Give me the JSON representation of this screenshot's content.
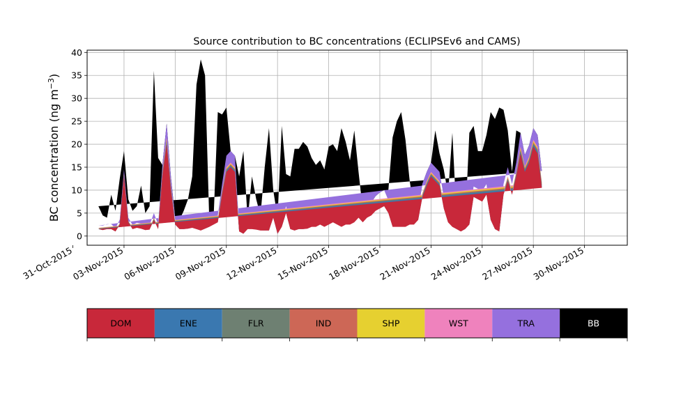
{
  "chart_data": {
    "type": "area",
    "title": "Source contribution to BC concentrations (ECLIPSEv6 and CAMS)",
    "ylabel": "BC concentration (ng m",
    "ylabel_sup": "−3",
    "ylabel_close": ")",
    "xlabel": "",
    "ylim": [
      -2,
      40.5
    ],
    "xlim": [
      "2015-11-01",
      "2015-12-03"
    ],
    "grid": true,
    "y_ticks": [
      0,
      5,
      10,
      15,
      20,
      25,
      30,
      35,
      40
    ],
    "x_ticks": [
      "31-Oct-2015",
      "03-Nov-2015",
      "06-Nov-2015",
      "09-Nov-2015",
      "12-Nov-2015",
      "15-Nov-2015",
      "18-Nov-2015",
      "21-Nov-2015",
      "24-Nov-2015",
      "27-Nov-2015",
      "30-Nov-2015"
    ],
    "legend_placement": "colorbar below plot",
    "stack_order": [
      "DOM",
      "ENE",
      "FLR",
      "IND",
      "SHP",
      "WST",
      "TRA",
      "BB"
    ],
    "colors": {
      "DOM": "#c8283a",
      "ENE": "#3a78b0",
      "FLR": "#6e8072",
      "IND": "#cd6756",
      "SHP": "#e6d030",
      "WST": "#ef82bd",
      "TRA": "#9570de",
      "BB": "#000000"
    },
    "legend_text_colors": {
      "DOM": "#000000",
      "ENE": "#000000",
      "FLR": "#000000",
      "IND": "#000000",
      "SHP": "#000000",
      "WST": "#000000",
      "TRA": "#000000",
      "BB": "#ffffff"
    },
    "time_series_6h": [
      "2015-11-01T12:00",
      "2015-11-05T18:00",
      "2015-11-06T00:00"
    ],
    "x": [
      "2015-11-01T12:00",
      "2015-11-01T18:00",
      "2015-11-02T00:00",
      "2015-11-02T06:00",
      "2015-11-02T12:00",
      "2015-11-02T18:00",
      "2015-11-03T00:00",
      "2015-11-03T06:00",
      "2015-11-03T12:00",
      "2015-11-03T18:00",
      "2015-11-04T00:00",
      "2015-11-04T06:00",
      "2015-11-04T12:00",
      "2015-11-04T18:00",
      "2015-11-05T00:00",
      "2015-11-05T06:00",
      "2015-11-05T12:00",
      "2015-11-05T18:00",
      "2015-11-06T00:00",
      "2015-11-06T06:00",
      "2015-11-06T12:00",
      "2015-11-06T18:00",
      "2015-11-07T00:00",
      "2015-11-07T06:00",
      "2015-11-07T12:00",
      "2015-11-07T18:00",
      "2015-11-08T00:00",
      "2015-11-08T06:00",
      "2015-11-08T12:00",
      "2015-11-08T18:00",
      "2015-11-09T00:00",
      "2015-11-09T06:00",
      "2015-11-09T12:00",
      "2015-11-09T18:00",
      "2015-11-10T00:00",
      "2015-11-10T06:00",
      "2015-11-10T12:00",
      "2015-11-10T18:00",
      "2015-11-11T00:00",
      "2015-11-11T06:00",
      "2015-11-11T12:00",
      "2015-11-11T18:00",
      "2015-11-12T00:00",
      "2015-11-12T06:00",
      "2015-11-12T12:00",
      "2015-11-12T18:00",
      "2015-11-13T00:00",
      "2015-11-13T06:00",
      "2015-11-13T12:00",
      "2015-11-13T18:00",
      "2015-11-14T00:00",
      "2015-11-14T06:00",
      "2015-11-14T12:00",
      "2015-11-14T18:00",
      "2015-11-15T00:00",
      "2015-11-15T06:00",
      "2015-11-15T12:00",
      "2015-11-15T18:00",
      "2015-11-16T00:00",
      "2015-11-16T06:00",
      "2015-11-16T12:00",
      "2015-11-16T18:00",
      "2015-11-17T00:00",
      "2015-11-17T06:00",
      "2015-11-17T12:00",
      "2015-11-17T18:00",
      "2015-11-18T00:00",
      "2015-11-18T06:00",
      "2015-11-18T12:00",
      "2015-11-18T18:00",
      "2015-11-19T00:00",
      "2015-11-19T06:00",
      "2015-11-19T12:00",
      "2015-11-19T18:00",
      "2015-11-20T00:00",
      "2015-11-20T06:00",
      "2015-11-20T12:00",
      "2015-11-20T18:00",
      "2015-11-21T00:00",
      "2015-11-21T06:00",
      "2015-11-21T12:00",
      "2015-11-21T18:00",
      "2015-11-22T00:00",
      "2015-11-22T06:00",
      "2015-11-22T12:00",
      "2015-11-22T18:00",
      "2015-11-23T00:00",
      "2015-11-23T06:00",
      "2015-11-23T12:00",
      "2015-11-23T18:00",
      "2015-11-24T00:00",
      "2015-11-24T06:00",
      "2015-11-24T12:00",
      "2015-11-24T18:00",
      "2015-11-25T00:00",
      "2015-11-25T06:00",
      "2015-11-25T12:00",
      "2015-11-25T18:00",
      "2015-11-26T00:00",
      "2015-11-26T06:00",
      "2015-11-26T12:00",
      "2015-11-26T18:00",
      "2015-11-27T00:00",
      "2015-11-27T06:00",
      "2015-11-27T12:00",
      "2015-11-27T18:00",
      "2015-11-28T00:00",
      "2015-11-28T06:00",
      "2015-11-28T12:00",
      "2015-11-28T18:00",
      "2015-11-29T00:00",
      "2015-11-29T06:00",
      "2015-11-29T12:00",
      "2015-11-29T18:00",
      "2015-11-30T00:00",
      "2015-11-30T06:00",
      "2015-11-30T12:00",
      "2015-11-30T18:00",
      "2015-12-01T00:00",
      "2015-12-01T06:00",
      "2015-12-01T12:00"
    ],
    "dom": [
      1.5,
      1.3,
      1.5,
      1.5,
      1.0,
      2.5,
      13.0,
      3.0,
      1.5,
      1.8,
      1.6,
      1.3,
      1.4,
      3.5,
      1.5,
      13.0,
      20.0,
      10.0,
      2.5,
      1.5,
      1.5,
      1.6,
      1.8,
      1.5,
      1.2,
      1.6,
      2.0,
      2.5,
      3.0,
      9.0,
      14.0,
      15.0,
      14.0,
      1.0,
      0.5,
      1.5,
      1.5,
      1.4,
      1.2,
      1.2,
      1.2,
      4.0,
      0.5,
      2.0,
      5.0,
      1.5,
      1.2,
      1.5,
      1.5,
      1.6,
      2.0,
      2.0,
      2.5,
      2.0,
      2.5,
      3.0,
      2.5,
      2.0,
      2.5,
      2.5,
      3.0,
      4.0,
      3.0,
      4.0,
      4.5,
      5.5,
      6.0,
      6.5,
      5.0,
      2.0,
      2.0,
      2.0,
      2.0,
      2.5,
      2.5,
      3.5,
      8.5,
      11.0,
      13.0,
      12.0,
      11.0,
      6.0,
      3.0,
      2.0,
      1.5,
      1.0,
      1.5,
      2.5,
      8.5,
      8.0,
      7.5,
      9.0,
      3.5,
      1.5,
      1.0,
      9.0,
      12.0,
      9.0,
      13.0,
      18.0,
      14.0,
      16.0,
      19.5,
      18.0,
      10.5
    ],
    "tra": [
      0.5,
      0.7,
      0.8,
      0.8,
      0.5,
      0.8,
      1.0,
      0.7,
      0.6,
      0.8,
      0.8,
      0.6,
      0.7,
      1.0,
      0.7,
      1.5,
      3.0,
      2.0,
      0.8,
      0.6,
      0.6,
      0.7,
      0.6,
      0.6,
      0.6,
      0.7,
      0.8,
      0.8,
      1.0,
      1.5,
      2.5,
      2.5,
      2.5,
      0.8,
      0.4,
      1.5,
      2.0,
      2.0,
      1.5,
      1.0,
      0.8,
      1.0,
      0.3,
      0.8,
      1.0,
      0.8,
      0.8,
      1.0,
      1.0,
      1.2,
      1.5,
      1.5,
      2.0,
      1.5,
      1.6,
      2.0,
      2.0,
      1.8,
      1.8,
      1.8,
      2.0,
      2.2,
      2.0,
      2.0,
      2.0,
      2.3,
      2.5,
      2.5,
      2.0,
      1.2,
      1.0,
      1.0,
      1.2,
      1.4,
      1.5,
      1.8,
      2.0,
      2.0,
      2.0,
      2.0,
      2.0,
      1.8,
      1.0,
      0.8,
      0.5,
      0.5,
      0.7,
      1.0,
      1.5,
      1.5,
      1.5,
      1.5,
      0.9,
      0.7,
      0.4,
      1.5,
      2.0,
      1.5,
      2.0,
      3.0,
      2.5,
      2.5,
      2.5,
      2.5,
      2.5
    ],
    "other": [
      0.3,
      0.3,
      0.3,
      0.3,
      0.2,
      0.3,
      0.5,
      0.3,
      0.3,
      0.3,
      0.3,
      0.3,
      0.3,
      0.5,
      0.3,
      1.0,
      1.5,
      1.0,
      0.4,
      0.3,
      0.3,
      0.3,
      0.3,
      0.3,
      0.3,
      0.3,
      0.3,
      0.4,
      0.5,
      0.8,
      1.0,
      1.0,
      1.0,
      0.3,
      0.1,
      0.6,
      0.8,
      0.8,
      0.6,
      0.4,
      0.3,
      0.5,
      0.1,
      0.3,
      0.5,
      0.3,
      0.3,
      0.4,
      0.4,
      0.4,
      0.5,
      0.5,
      0.6,
      0.5,
      0.6,
      0.7,
      0.6,
      0.5,
      0.6,
      0.6,
      0.7,
      0.8,
      0.7,
      0.8,
      0.8,
      0.9,
      1.0,
      1.0,
      0.8,
      0.5,
      0.4,
      0.4,
      0.4,
      0.5,
      0.5,
      0.7,
      0.9,
      1.0,
      1.0,
      1.0,
      1.0,
      0.7,
      0.5,
      0.4,
      0.3,
      0.2,
      0.3,
      0.4,
      0.8,
      0.8,
      0.8,
      0.8,
      0.4,
      0.3,
      0.2,
      0.8,
      1.0,
      0.8,
      1.0,
      1.5,
      1.2,
      1.3,
      1.5,
      1.5,
      1.2
    ],
    "total": [
      6.5,
      4.5,
      4.0,
      9.0,
      5.5,
      12.5,
      18.5,
      8.0,
      5.5,
      6.5,
      11.0,
      5.0,
      6.5,
      36.0,
      17.0,
      4.5,
      5.5,
      5.0,
      4.0,
      3.5,
      5.5,
      8.0,
      13.0,
      33.0,
      38.5,
      35.0,
      2.5,
      2.0,
      27.0,
      26.5,
      28.0,
      8.5,
      3.0,
      13.0,
      18.5,
      3.0,
      13.0,
      8.0,
      4.5,
      15.0,
      23.5,
      10.0,
      4.0,
      24.0,
      13.5,
      13.0,
      19.0,
      19.0,
      20.5,
      19.5,
      17.0,
      15.5,
      16.5,
      14.5,
      19.5,
      20.0,
      18.5,
      23.5,
      20.5,
      16.5,
      23.0,
      14.0,
      5.5,
      4.5,
      5.0,
      7.5,
      6.0,
      9.0,
      10.0,
      21.5,
      25.0,
      27.0,
      21.0,
      12.0,
      6.0,
      2.0,
      1.0,
      5.0,
      6.5,
      23.0,
      18.0,
      14.5,
      9.0,
      22.5,
      4.0,
      2.0,
      1.5,
      22.5,
      24.0,
      18.5,
      18.5,
      22.0,
      27.0,
      25.5,
      28.0,
      27.5,
      23.0,
      14.0,
      23.0,
      13.0,
      12.0,
      12.0,
      12.0,
      12.0,
      12.0
    ]
  }
}
